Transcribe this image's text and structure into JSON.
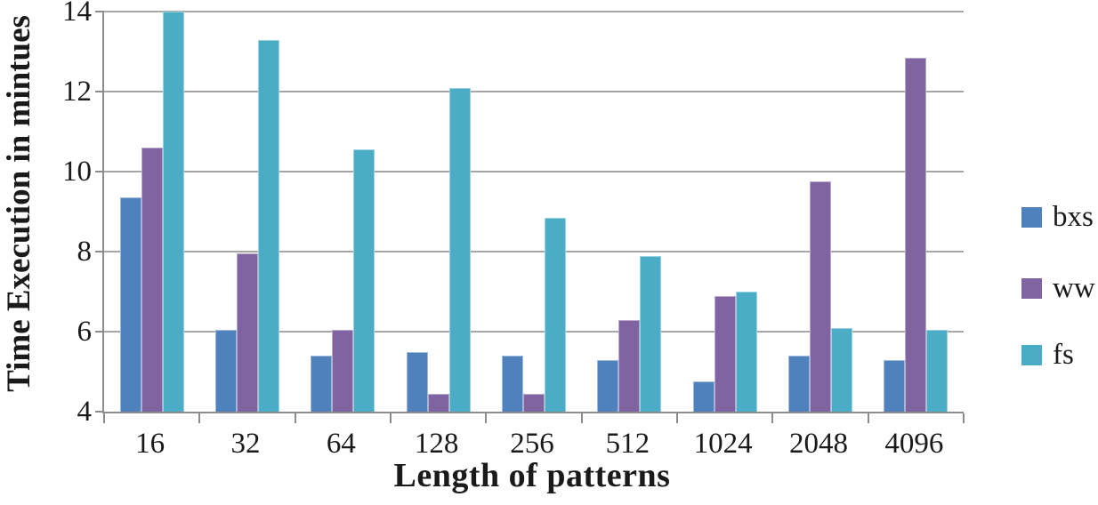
{
  "chart_data": {
    "type": "bar",
    "title": "",
    "xlabel": "Length of patterns",
    "ylabel": "Time Execution in mintues",
    "categories": [
      "16",
      "32",
      "64",
      "128",
      "256",
      "512",
      "1024",
      "2048",
      "4096"
    ],
    "series": [
      {
        "name": "bxs",
        "color": "#4F81BD",
        "values": [
          9.35,
          6.05,
          5.4,
          5.5,
          5.4,
          5.3,
          4.75,
          5.4,
          5.3
        ]
      },
      {
        "name": "ww",
        "color": "#8064A2",
        "values": [
          10.6,
          7.95,
          6.05,
          4.45,
          4.45,
          6.3,
          6.9,
          9.75,
          12.85
        ]
      },
      {
        "name": "fs",
        "color": "#4BACC6",
        "values": [
          14.0,
          13.3,
          10.55,
          12.1,
          8.85,
          7.9,
          7.0,
          6.1,
          6.05
        ]
      }
    ],
    "ylim": [
      4,
      14
    ],
    "yticks": [
      4,
      6,
      8,
      10,
      12,
      14
    ],
    "grid": true,
    "legend_position": "right",
    "colors": {
      "gridline": "#a6a6a6",
      "axis": "#8c8c8c",
      "text": "#1a1a1a"
    }
  }
}
